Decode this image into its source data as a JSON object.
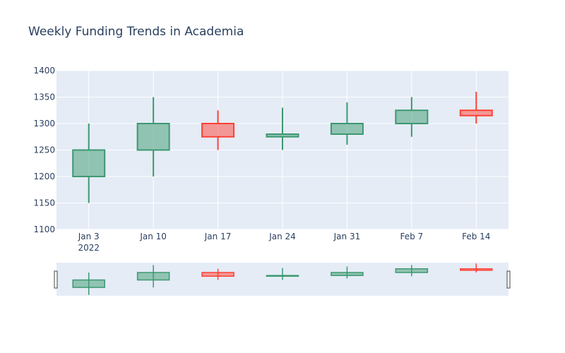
{
  "chart_data": {
    "type": "candlestick",
    "title": "Weekly Funding Trends in Academia",
    "xlabel": "",
    "ylabel": "",
    "ylim": [
      1100,
      1400
    ],
    "y_ticks": [
      "1100",
      "1150",
      "1200",
      "1250",
      "1300",
      "1350",
      "1400"
    ],
    "grid": true,
    "categories": [
      "Jan 3",
      "Jan 10",
      "Jan 17",
      "Jan 24",
      "Jan 31",
      "Feb 7",
      "Feb 14"
    ],
    "year_label": "2022",
    "open": [
      1200,
      1250,
      1300,
      1275,
      1280,
      1300,
      1325
    ],
    "high": [
      1300,
      1350,
      1325,
      1330,
      1340,
      1350,
      1360
    ],
    "low": [
      1150,
      1200,
      1250,
      1250,
      1260,
      1275,
      1300
    ],
    "close": [
      1250,
      1300,
      1275,
      1280,
      1300,
      1325,
      1315
    ],
    "increasing_color": "#3d9970",
    "decreasing_color": "#ff4136",
    "rangeslider": true
  }
}
